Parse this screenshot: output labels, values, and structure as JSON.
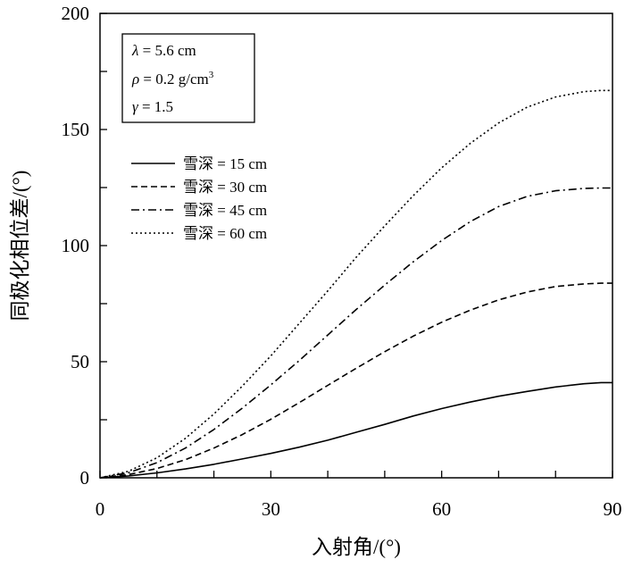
{
  "chart_data": {
    "type": "line",
    "title": "",
    "xlabel": "入射角/(°)",
    "ylabel": "同极化相位差/(°)",
    "xlim": [
      0,
      90
    ],
    "ylim": [
      0,
      200
    ],
    "xticks": [
      0,
      30,
      60,
      90
    ],
    "yticks": [
      0,
      50,
      100,
      150,
      200
    ],
    "x": [
      0,
      5,
      10,
      15,
      20,
      25,
      30,
      35,
      40,
      45,
      50,
      55,
      60,
      65,
      70,
      75,
      80,
      85,
      88,
      90
    ],
    "series": [
      {
        "name": "雪深 = 15 cm",
        "dash": "solid",
        "values": [
          0,
          0.8,
          2.1,
          3.8,
          5.8,
          8.1,
          10.5,
          13.2,
          16.2,
          19.6,
          23.0,
          26.6,
          29.8,
          32.6,
          35.1,
          37.2,
          39.1,
          40.5,
          41.0,
          41.0
        ]
      },
      {
        "name": "雪深 = 30 cm",
        "dash": "dashed",
        "values": [
          0,
          1.4,
          4.0,
          7.8,
          12.8,
          18.6,
          25.2,
          32.4,
          39.8,
          47.2,
          54.3,
          61.0,
          67.0,
          72.2,
          76.6,
          80.0,
          82.4,
          83.5,
          83.8,
          83.8
        ]
      },
      {
        "name": "雪深 = 45 cm",
        "dash": "dashdot",
        "values": [
          0,
          2.2,
          6.5,
          12.8,
          20.8,
          30.0,
          40.0,
          50.5,
          61.5,
          72.5,
          83.0,
          93.0,
          102.2,
          110.3,
          116.8,
          121.2,
          123.6,
          124.6,
          124.8,
          124.8
        ]
      },
      {
        "name": "雪深 = 60 cm",
        "dash": "dotted",
        "values": [
          0,
          2.8,
          8.6,
          17.0,
          27.5,
          39.5,
          52.5,
          66.5,
          80.5,
          95.0,
          108.5,
          121.5,
          133.5,
          144.0,
          152.8,
          159.6,
          164.0,
          166.3,
          166.8,
          166.8
        ]
      }
    ],
    "legend_position": "upper-left",
    "annotations": [
      "λ = 5.6 cm",
      "ρ = 0.2 g/cm³",
      "γ = 1.5"
    ]
  },
  "params": {
    "lambda_sym": "λ",
    "lambda_val": " = 5.6 cm",
    "rho_sym": "ρ",
    "rho_val": " = 0.2 g/cm",
    "rho_exp": "3",
    "gamma_sym": "γ",
    "gamma_val": " = 1.5"
  },
  "colors": {
    "line": "#000000",
    "background": "#ffffff"
  }
}
